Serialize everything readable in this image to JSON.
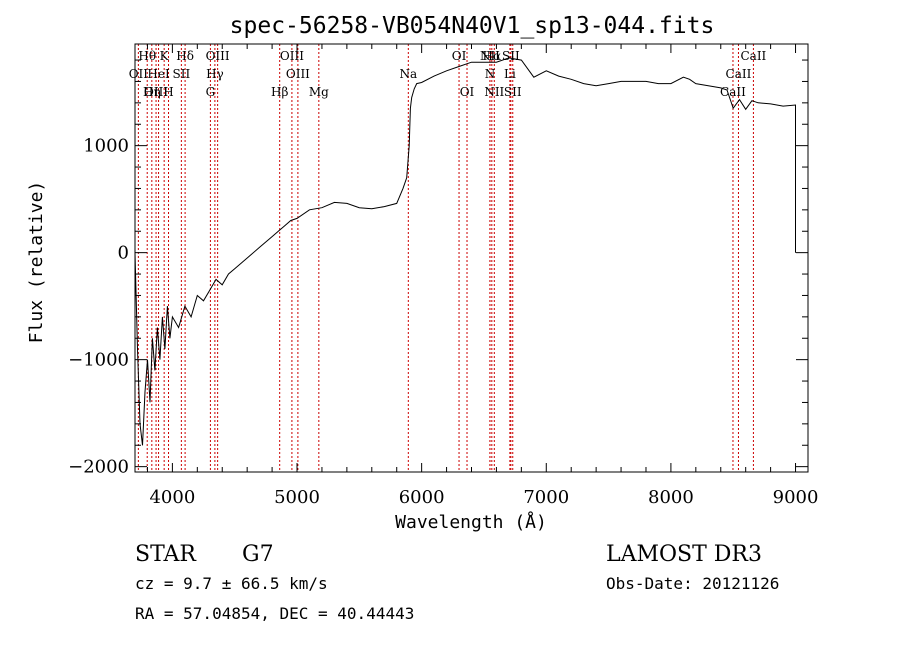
{
  "chart_data": {
    "type": "line",
    "title": "spec-56258-VB054N40V1_sp13-044.fits",
    "xlabel": "Wavelength (Å)",
    "ylabel": "Flux (relative)",
    "xlim": [
      3700,
      9100
    ],
    "ylim": [
      -2050,
      1950
    ],
    "x_ticks": [
      4000,
      5000,
      6000,
      7000,
      8000,
      9000
    ],
    "y_ticks": [
      -2000,
      -1000,
      0,
      1000
    ],
    "grid": false,
    "line_color": "#000000",
    "marker_color": "#cc0000",
    "series": [
      {
        "x": [
          3700,
          3720,
          3740,
          3760,
          3780,
          3800,
          3820,
          3840,
          3860,
          3880,
          3900,
          3920,
          3940,
          3960,
          3980,
          4000,
          4050,
          4100,
          4150,
          4200,
          4250,
          4300,
          4350,
          4400,
          4450,
          4500,
          4600,
          4700,
          4800,
          4850,
          4900,
          4950,
          5000,
          5100,
          5200,
          5300,
          5400,
          5500,
          5600,
          5700,
          5800,
          5850,
          5880,
          5900,
          5910,
          5920,
          5940,
          5960,
          6000,
          6100,
          6200,
          6300,
          6400,
          6500,
          6600,
          6700,
          6800,
          6900,
          7000,
          7100,
          7200,
          7300,
          7400,
          7500,
          7600,
          7700,
          7800,
          7900,
          8000,
          8100,
          8150,
          8200,
          8300,
          8400,
          8450,
          8500,
          8550,
          8600,
          8650,
          8700,
          8800,
          8900,
          9000,
          9000
        ],
        "y": [
          0,
          -900,
          -1600,
          -1800,
          -1300,
          -1000,
          -1400,
          -800,
          -1100,
          -700,
          -1000,
          -600,
          -900,
          -500,
          -800,
          -600,
          -700,
          -500,
          -600,
          -400,
          -450,
          -350,
          -250,
          -300,
          -200,
          -150,
          -50,
          50,
          150,
          200,
          250,
          300,
          320,
          400,
          420,
          470,
          460,
          420,
          410,
          430,
          460,
          600,
          700,
          1000,
          1350,
          1450,
          1530,
          1580,
          1590,
          1650,
          1700,
          1740,
          1780,
          1780,
          1780,
          1820,
          1800,
          1640,
          1700,
          1650,
          1620,
          1580,
          1560,
          1580,
          1600,
          1600,
          1600,
          1580,
          1580,
          1640,
          1620,
          1580,
          1560,
          1540,
          1520,
          1350,
          1430,
          1340,
          1420,
          1400,
          1390,
          1370,
          1380,
          0
        ]
      }
    ],
    "lines": [
      {
        "label": "Hθ",
        "x": 3798,
        "row": 0
      },
      {
        "label": "OII",
        "x": 3727,
        "row": 1
      },
      {
        "label": "OIII",
        "x": 3869,
        "row": 2
      },
      {
        "label": "K",
        "x": 3934,
        "row": 0
      },
      {
        "label": "HeI",
        "x": 3889,
        "row": 1
      },
      {
        "label": "Hη",
        "x": 3835,
        "row": 2
      },
      {
        "label": "SII",
        "x": 4072,
        "row": 1
      },
      {
        "label": "H",
        "x": 3969,
        "row": 2
      },
      {
        "label": "Hδ",
        "x": 4102,
        "row": 0
      },
      {
        "label": "OIII",
        "x": 4363,
        "row": 0
      },
      {
        "label": "Hγ",
        "x": 4341,
        "row": 1
      },
      {
        "label": "G",
        "x": 4305,
        "row": 2
      },
      {
        "label": "OIII",
        "x": 4959,
        "row": 0
      },
      {
        "label": "OIII",
        "x": 5007,
        "row": 1
      },
      {
        "label": "Hβ",
        "x": 4861,
        "row": 2
      },
      {
        "label": "Mg",
        "x": 5175,
        "row": 2
      },
      {
        "label": "Na",
        "x": 5893,
        "row": 1
      },
      {
        "label": "OI",
        "x": 6300,
        "row": 0
      },
      {
        "label": "OI",
        "x": 6364,
        "row": 2
      },
      {
        "label": "NII",
        "x": 6548,
        "row": 0
      },
      {
        "label": "Hα",
        "x": 6563,
        "row": 0
      },
      {
        "label": "NII",
        "x": 6583,
        "row": 2
      },
      {
        "label": "N",
        "x": 6548,
        "row": 1
      },
      {
        "label": "SII",
        "x": 6716,
        "row": 0
      },
      {
        "label": "Li",
        "x": 6708,
        "row": 1
      },
      {
        "label": "SII",
        "x": 6731,
        "row": 2
      },
      {
        "label": "CaII",
        "x": 8662,
        "row": 0
      },
      {
        "label": "CaII",
        "x": 8542,
        "row": 1
      },
      {
        "label": "CaII",
        "x": 8498,
        "row": 2
      }
    ]
  },
  "info": {
    "class_label": "STAR",
    "subclass_label": "G7",
    "survey_label": "LAMOST DR3",
    "cz_text": "cz = 9.7 ± 66.5 km/s",
    "obs_date_text": "Obs-Date: 20121126",
    "radec_text": "RA =  57.04854, DEC =  40.44443"
  }
}
